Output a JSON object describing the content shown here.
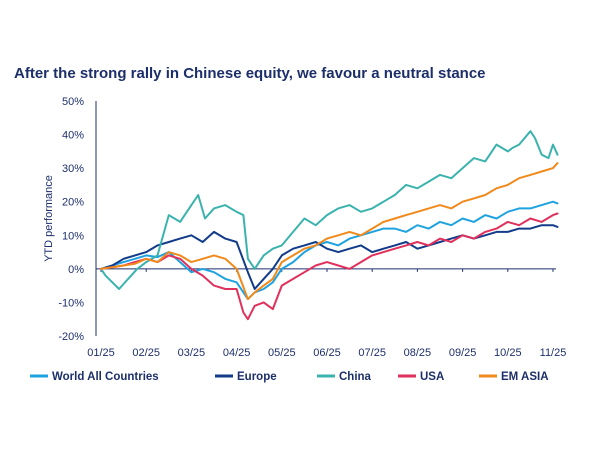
{
  "chart_data": {
    "type": "line",
    "title": "After the strong rally in Chinese equity, we favour a neutral stance",
    "xlabel": "",
    "ylabel": "YTD performance",
    "ylim": [
      -20,
      50
    ],
    "yticks": [
      -20,
      -10,
      0,
      10,
      20,
      30,
      40,
      50
    ],
    "ytick_labels": [
      "-20%",
      "-10%",
      "0%",
      "10%",
      "20%",
      "30%",
      "40%",
      "50%"
    ],
    "xlim": [
      0,
      10.3
    ],
    "xticks": [
      0,
      1,
      2,
      3,
      4,
      5,
      6,
      7,
      8,
      9,
      10
    ],
    "xtick_labels": [
      "01/25",
      "02/25",
      "03/25",
      "04/25",
      "05/25",
      "06/25",
      "07/25",
      "08/25",
      "09/25",
      "10/25",
      "11/25"
    ],
    "grid": false,
    "legend_position": "bottom",
    "series": [
      {
        "name": "World All Countries",
        "color": "#1fa3e0",
        "x": [
          0,
          0.25,
          0.5,
          0.75,
          1.0,
          1.25,
          1.5,
          1.75,
          2.0,
          2.25,
          2.5,
          2.75,
          3.0,
          3.25,
          3.4,
          3.6,
          3.8,
          4.0,
          4.25,
          4.5,
          4.75,
          5.0,
          5.25,
          5.5,
          5.75,
          6.0,
          6.25,
          6.5,
          6.75,
          7.0,
          7.25,
          7.5,
          7.75,
          8.0,
          8.25,
          8.5,
          8.75,
          9.0,
          9.25,
          9.5,
          9.75,
          10.0,
          10.1
        ],
        "values": [
          0,
          1,
          2,
          3,
          4,
          3.5,
          5,
          2,
          -1,
          0,
          -1,
          -3,
          -4,
          -9,
          -7,
          -6,
          -4,
          0,
          2,
          5,
          7,
          8,
          7,
          9,
          10,
          11,
          12,
          12,
          11,
          13,
          12,
          14,
          13,
          15,
          14,
          16,
          15,
          17,
          18,
          18,
          19,
          20,
          19.5
        ]
      },
      {
        "name": "Europe",
        "color": "#123b8a",
        "x": [
          0,
          0.25,
          0.5,
          0.75,
          1.0,
          1.25,
          1.5,
          1.75,
          2.0,
          2.25,
          2.5,
          2.75,
          3.0,
          3.25,
          3.4,
          3.6,
          3.8,
          4.0,
          4.25,
          4.5,
          4.75,
          5.0,
          5.25,
          5.5,
          5.75,
          6.0,
          6.25,
          6.5,
          6.75,
          7.0,
          7.25,
          7.5,
          7.75,
          8.0,
          8.25,
          8.5,
          8.75,
          9.0,
          9.25,
          9.5,
          9.75,
          10.0,
          10.1
        ],
        "values": [
          0,
          1,
          3,
          4,
          5,
          7,
          8,
          9,
          10,
          8,
          11,
          9,
          8,
          -1,
          -6,
          -3,
          0,
          4,
          6,
          7,
          8,
          6,
          5,
          6,
          7,
          5,
          6,
          7,
          8,
          6,
          7,
          8,
          9,
          10,
          9,
          10,
          11,
          11,
          12,
          12,
          13,
          13,
          12.5
        ]
      },
      {
        "name": "China",
        "color": "#3bb3ad",
        "x": [
          0,
          0.1,
          0.25,
          0.4,
          0.6,
          0.8,
          1.0,
          1.25,
          1.5,
          1.75,
          2.0,
          2.15,
          2.3,
          2.5,
          2.75,
          3.0,
          3.15,
          3.25,
          3.4,
          3.6,
          3.8,
          4.0,
          4.25,
          4.5,
          4.75,
          5.0,
          5.25,
          5.5,
          5.75,
          6.0,
          6.25,
          6.5,
          6.75,
          7.0,
          7.25,
          7.5,
          7.75,
          8.0,
          8.25,
          8.5,
          8.75,
          9.0,
          9.1,
          9.25,
          9.5,
          9.6,
          9.75,
          9.9,
          10.0,
          10.1
        ],
        "values": [
          0,
          -2,
          -4,
          -6,
          -3,
          0,
          2,
          4,
          16,
          14,
          19,
          22,
          15,
          18,
          19,
          17,
          16,
          3,
          0,
          4,
          6,
          7,
          11,
          15,
          13,
          16,
          18,
          19,
          17,
          18,
          20,
          22,
          25,
          24,
          26,
          28,
          27,
          30,
          33,
          32,
          37,
          35,
          36,
          37,
          41,
          39,
          34,
          33,
          37,
          34
        ]
      },
      {
        "name": "USA",
        "color": "#e0305c",
        "x": [
          0,
          0.25,
          0.5,
          0.75,
          1.0,
          1.25,
          1.5,
          1.75,
          2.0,
          2.25,
          2.5,
          2.75,
          3.0,
          3.15,
          3.25,
          3.4,
          3.6,
          3.8,
          4.0,
          4.25,
          4.5,
          4.75,
          5.0,
          5.25,
          5.5,
          5.75,
          6.0,
          6.25,
          6.5,
          6.75,
          7.0,
          7.25,
          7.5,
          7.75,
          8.0,
          8.25,
          8.5,
          8.75,
          9.0,
          9.25,
          9.5,
          9.75,
          10.0,
          10.1
        ],
        "values": [
          0,
          0.5,
          1,
          2,
          3,
          2,
          4,
          3,
          0,
          -2,
          -5,
          -6,
          -6,
          -13,
          -15,
          -11,
          -10,
          -12,
          -5,
          -3,
          -1,
          1,
          2,
          1,
          0,
          2,
          4,
          5,
          6,
          7,
          8,
          7,
          9,
          8,
          10,
          9,
          11,
          12,
          14,
          13,
          15,
          14,
          16,
          16.5
        ]
      },
      {
        "name": "EM ASIA",
        "color": "#f08a1c",
        "x": [
          0,
          0.25,
          0.5,
          0.75,
          1.0,
          1.25,
          1.5,
          1.75,
          2.0,
          2.25,
          2.5,
          2.75,
          3.0,
          3.25,
          3.4,
          3.6,
          3.8,
          4.0,
          4.25,
          4.5,
          4.75,
          5.0,
          5.25,
          5.5,
          5.75,
          6.0,
          6.25,
          6.5,
          6.75,
          7.0,
          7.25,
          7.5,
          7.75,
          8.0,
          8.25,
          8.5,
          8.75,
          9.0,
          9.25,
          9.5,
          9.75,
          10.0,
          10.1
        ],
        "values": [
          0,
          0.5,
          1,
          1.5,
          3,
          2,
          5,
          4,
          2,
          3,
          4,
          3,
          0,
          -9,
          -7,
          -5,
          -3,
          2,
          4,
          6,
          7,
          9,
          10,
          11,
          10,
          12,
          14,
          15,
          16,
          17,
          18,
          19,
          18,
          20,
          21,
          22,
          24,
          25,
          27,
          28,
          29,
          30,
          31.5
        ]
      }
    ]
  }
}
